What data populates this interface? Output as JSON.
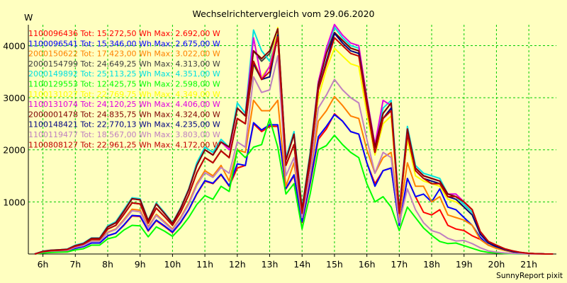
{
  "chart_data": {
    "type": "line",
    "title": "Wechselrichtervergleich vom 29.06.2020",
    "ylabel": "W",
    "xlabel": "",
    "ylim": [
      0,
      4400
    ],
    "xlim": [
      5.55,
      21.85
    ],
    "grid": true,
    "legend_position": "top-left",
    "yticks": [
      1000,
      2000,
      3000,
      4000
    ],
    "xticks": [
      "6h",
      "7h",
      "8h",
      "9h",
      "10h",
      "11h",
      "12h",
      "13h",
      "14h",
      "15h",
      "16h",
      "17h",
      "18h",
      "19h",
      "20h",
      "21h"
    ],
    "x": [
      "05:45",
      "06:00",
      "06:15",
      "06:30",
      "06:45",
      "07:00",
      "07:15",
      "07:30",
      "07:45",
      "08:00",
      "08:15",
      "08:30",
      "08:45",
      "09:00",
      "09:15",
      "09:30",
      "09:45",
      "10:00",
      "10:15",
      "10:30",
      "10:45",
      "11:00",
      "11:15",
      "11:30",
      "11:45",
      "12:00",
      "12:15",
      "12:30",
      "12:45",
      "13:00",
      "13:15",
      "13:30",
      "13:45",
      "14:00",
      "14:15",
      "14:30",
      "14:45",
      "15:00",
      "15:15",
      "15:30",
      "15:45",
      "16:00",
      "16:15",
      "16:30",
      "16:45",
      "17:00",
      "17:15",
      "17:30",
      "17:45",
      "18:00",
      "18:15",
      "18:30",
      "18:45",
      "19:00",
      "19:15",
      "19:30",
      "19:45",
      "20:00",
      "20:15",
      "20:30",
      "20:45",
      "21:00",
      "21:15",
      "21:30",
      "21:45"
    ],
    "series": [
      {
        "name": "1100096436",
        "legend": "1100096436 Tot: 15.272,50 Wh Max: 2.692,00 W",
        "color": "#ff0000",
        "values": [
          0,
          30,
          45,
          50,
          60,
          110,
          140,
          210,
          210,
          350,
          400,
          550,
          730,
          720,
          440,
          640,
          530,
          410,
          600,
          840,
          1150,
          1400,
          1350,
          1520,
          1300,
          1650,
          1700,
          2500,
          2350,
          2450,
          2450,
          1250,
          1500,
          600,
          1350,
          2200,
          2400,
          2692,
          2550,
          2350,
          2300,
          1750,
          1350,
          1600,
          1650,
          550,
          1450,
          1100,
          800,
          750,
          850,
          550,
          480,
          450,
          350,
          280,
          170,
          110,
          70,
          40,
          20,
          10,
          5,
          0,
          0
        ]
      },
      {
        "name": "1100096541",
        "legend": "1100096541 Tot: 15.346,00 Wh Max: 2.675,00 W",
        "color": "#0000ff",
        "values": [
          0,
          30,
          45,
          50,
          60,
          110,
          140,
          210,
          210,
          350,
          400,
          560,
          740,
          730,
          450,
          650,
          540,
          420,
          610,
          850,
          1160,
          1410,
          1360,
          1530,
          1310,
          1730,
          1700,
          2520,
          2380,
          2480,
          2480,
          1260,
          1520,
          620,
          1380,
          2250,
          2450,
          2675,
          2550,
          2350,
          2300,
          1750,
          1300,
          1600,
          1650,
          550,
          1450,
          1100,
          1150,
          1000,
          1250,
          900,
          850,
          700,
          550,
          320,
          170,
          120,
          70,
          40,
          20,
          10,
          5,
          0,
          0
        ]
      },
      {
        "name": "2000150622",
        "legend": "2000150622 Tot: 17.423,00 Wh Max: 3.022,00 W",
        "color": "#ff8000",
        "values": [
          0,
          35,
          50,
          55,
          65,
          130,
          160,
          250,
          250,
          420,
          480,
          660,
          860,
          840,
          520,
          760,
          620,
          480,
          700,
          980,
          1350,
          1600,
          1500,
          1700,
          1400,
          2000,
          1950,
          2950,
          2750,
          2750,
          2950,
          1300,
          1750,
          700,
          1500,
          2550,
          2750,
          3022,
          2850,
          2650,
          2600,
          2000,
          1550,
          1850,
          1950,
          700,
          1750,
          1300,
          1300,
          1000,
          1100,
          750,
          700,
          650,
          550,
          280,
          170,
          110,
          70,
          40,
          20,
          10,
          5,
          0,
          0
        ]
      },
      {
        "name": "2000154799",
        "legend": "2000154799 Tot: 24.649,25 Wh Max: 4.313,00 W",
        "color": "#404040",
        "values": [
          0,
          50,
          70,
          80,
          90,
          160,
          200,
          300,
          300,
          520,
          600,
          820,
          1060,
          1040,
          640,
          960,
          780,
          590,
          870,
          1230,
          1700,
          2000,
          1900,
          2150,
          2050,
          2800,
          2650,
          3900,
          3700,
          3850,
          4313,
          1800,
          2300,
          850,
          1900,
          3250,
          3850,
          4250,
          4100,
          3950,
          3900,
          2950,
          2050,
          2700,
          2900,
          800,
          2400,
          1650,
          1500,
          1450,
          1400,
          1150,
          1100,
          950,
          800,
          400,
          220,
          150,
          90,
          50,
          25,
          10,
          5,
          0,
          0
        ]
      },
      {
        "name": "2000149892",
        "legend": "2000149892 Tot: 25.113,25 Wh Max: 4.351,00 W",
        "color": "#00e0e0",
        "values": [
          0,
          55,
          75,
          80,
          95,
          170,
          210,
          310,
          310,
          540,
          620,
          850,
          1080,
          1060,
          650,
          980,
          800,
          600,
          890,
          1250,
          1750,
          2050,
          1950,
          2200,
          2050,
          2900,
          2700,
          4300,
          3900,
          3700,
          4250,
          1850,
          2350,
          880,
          1950,
          3300,
          3900,
          4351,
          4150,
          4000,
          3950,
          3000,
          2100,
          2800,
          2950,
          850,
          2450,
          1700,
          1550,
          1500,
          1450,
          1150,
          1100,
          950,
          800,
          400,
          220,
          150,
          90,
          50,
          25,
          10,
          5,
          0,
          0
        ]
      },
      {
        "name": "1100129553",
        "legend": "1100129553 Tot: 12.425,75 Wh Max: 2.598,00 W",
        "color": "#00ff00",
        "values": [
          0,
          20,
          30,
          35,
          40,
          80,
          100,
          170,
          170,
          290,
          330,
          460,
          550,
          540,
          330,
          520,
          440,
          340,
          500,
          700,
          950,
          1120,
          1050,
          1300,
          1200,
          2000,
          1850,
          2050,
          2100,
          2598,
          2050,
          1150,
          1350,
          480,
          1150,
          2000,
          2080,
          2280,
          2100,
          1950,
          1850,
          1350,
          1000,
          1100,
          900,
          450,
          900,
          700,
          500,
          360,
          240,
          200,
          210,
          160,
          110,
          60,
          30,
          20,
          10,
          5,
          0,
          0,
          0,
          0,
          0
        ]
      },
      {
        "name": "1100131027",
        "legend": "1100131027 Tot: 22.769,75 Wh Max: 4.349,00 W",
        "color": "#ffff00",
        "values": [
          0,
          45,
          65,
          70,
          85,
          150,
          190,
          280,
          280,
          480,
          550,
          760,
          980,
          960,
          590,
          880,
          720,
          550,
          800,
          1130,
          1560,
          1850,
          1750,
          1980,
          1850,
          2600,
          2500,
          3600,
          3400,
          3600,
          4349,
          1700,
          2100,
          800,
          1750,
          3000,
          3550,
          3950,
          3800,
          3650,
          3600,
          2700,
          1900,
          2500,
          2650,
          780,
          2200,
          1500,
          1400,
          1350,
          1300,
          1050,
          1000,
          900,
          750,
          380,
          210,
          140,
          85,
          45,
          22,
          10,
          5,
          0,
          0
        ]
      },
      {
        "name": "1100131074",
        "legend": "1100131074 Tot: 24.120,25 Wh Max: 4.406,00 W",
        "color": "#e000e0",
        "values": [
          0,
          50,
          70,
          75,
          90,
          160,
          200,
          300,
          300,
          520,
          600,
          820,
          1060,
          1040,
          640,
          960,
          780,
          590,
          870,
          1230,
          1700,
          2000,
          1900,
          2150,
          2000,
          2800,
          2650,
          4150,
          3350,
          3600,
          4200,
          1800,
          2300,
          850,
          1900,
          3300,
          3950,
          4406,
          4200,
          4050,
          4000,
          3000,
          2100,
          2950,
          2850,
          820,
          2400,
          1650,
          1500,
          1450,
          1400,
          1150,
          1150,
          1000,
          850,
          420,
          230,
          160,
          95,
          55,
          28,
          10,
          5,
          0,
          0
        ]
      },
      {
        "name": "2000001478",
        "legend": "2000001478 Tot: 24.835,75 Wh Max: 4.324,00 W",
        "color": "#800000",
        "values": [
          0,
          50,
          70,
          80,
          90,
          160,
          200,
          300,
          300,
          520,
          600,
          820,
          1060,
          1040,
          640,
          960,
          780,
          590,
          870,
          1230,
          1700,
          2000,
          1900,
          2150,
          2050,
          2800,
          2650,
          3900,
          3750,
          3900,
          4324,
          1800,
          2300,
          850,
          1900,
          3250,
          3850,
          4250,
          4100,
          3950,
          3900,
          2950,
          2050,
          2700,
          2900,
          800,
          2400,
          1650,
          1500,
          1450,
          1400,
          1150,
          1100,
          1000,
          850,
          430,
          240,
          170,
          100,
          60,
          30,
          12,
          5,
          0,
          0
        ]
      },
      {
        "name": "1100148421",
        "legend": "1100148421 Tot: 22.770,13 Wh Max: 4.235,00 W",
        "color": "#000080",
        "values": [
          0,
          45,
          65,
          70,
          85,
          150,
          190,
          280,
          280,
          480,
          550,
          760,
          980,
          960,
          590,
          880,
          720,
          550,
          800,
          1130,
          1560,
          1850,
          1750,
          1980,
          1850,
          2600,
          2500,
          3650,
          3350,
          3400,
          4200,
          1700,
          2100,
          780,
          1750,
          3150,
          3700,
          4235,
          4050,
          3900,
          3850,
          2850,
          1950,
          2600,
          2800,
          780,
          2300,
          1600,
          1450,
          1400,
          1350,
          1100,
          1050,
          900,
          750,
          380,
          210,
          140,
          85,
          45,
          22,
          10,
          5,
          0,
          0
        ]
      },
      {
        "name": "1100119477",
        "legend": "1100119477 Tot: 18.567,00 Wh Max: 3.803,00 W",
        "color": "#c080c0",
        "values": [
          0,
          40,
          55,
          60,
          70,
          130,
          160,
          240,
          240,
          410,
          470,
          640,
          830,
          810,
          500,
          740,
          600,
          460,
          680,
          950,
          1320,
          1560,
          1470,
          1660,
          1550,
          2150,
          2050,
          3400,
          3100,
          3150,
          3803,
          1500,
          1850,
          700,
          1550,
          2800,
          3050,
          3350,
          3150,
          3000,
          2900,
          2200,
          1550,
          1950,
          1850,
          600,
          1250,
          850,
          600,
          450,
          400,
          300,
          250,
          260,
          200,
          120,
          60,
          35,
          20,
          10,
          5,
          0,
          0,
          0,
          0
        ]
      },
      {
        "name": "1100808127",
        "legend": "1100808127 Tot: 22.961,25 Wh Max: 4.172,00 W",
        "color": "#c00000",
        "values": [
          0,
          45,
          65,
          70,
          85,
          150,
          190,
          280,
          280,
          480,
          550,
          760,
          980,
          960,
          590,
          880,
          720,
          550,
          800,
          1130,
          1560,
          1850,
          1750,
          1980,
          1850,
          2600,
          2500,
          3700,
          3350,
          3500,
          4172,
          1700,
          2100,
          780,
          1750,
          3150,
          3650,
          4150,
          4000,
          3850,
          3800,
          2850,
          1950,
          2600,
          2750,
          780,
          2300,
          1600,
          1450,
          1350,
          1350,
          1100,
          1100,
          1000,
          850,
          430,
          240,
          170,
          100,
          60,
          30,
          12,
          5,
          0,
          0
        ]
      }
    ]
  },
  "footer": {
    "credit": "SunnyReport pixit"
  },
  "colors": {
    "background": "#ffffc0",
    "grid": "#00cc00",
    "axis": "#000000"
  }
}
